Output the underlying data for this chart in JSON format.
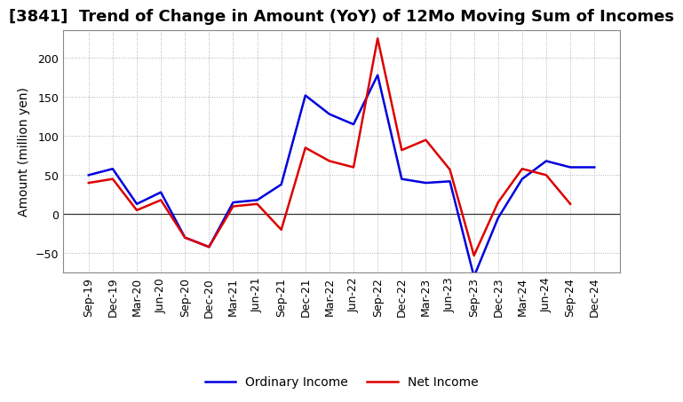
{
  "title": "[3841]  Trend of Change in Amount (YoY) of 12Mo Moving Sum of Incomes",
  "ylabel": "Amount (million yen)",
  "x_labels": [
    "Sep-19",
    "Dec-19",
    "Mar-20",
    "Jun-20",
    "Sep-20",
    "Dec-20",
    "Mar-21",
    "Jun-21",
    "Sep-21",
    "Dec-21",
    "Mar-22",
    "Jun-22",
    "Sep-22",
    "Dec-22",
    "Mar-23",
    "Jun-23",
    "Sep-23",
    "Dec-23",
    "Mar-24",
    "Jun-24",
    "Sep-24",
    "Dec-24"
  ],
  "ordinary_income": [
    50,
    58,
    13,
    28,
    -30,
    -42,
    15,
    18,
    38,
    152,
    128,
    115,
    178,
    45,
    40,
    42,
    -80,
    -5,
    45,
    68,
    60,
    60
  ],
  "net_income": [
    40,
    45,
    5,
    18,
    -30,
    -42,
    10,
    13,
    -20,
    85,
    68,
    60,
    225,
    82,
    95,
    57,
    -53,
    15,
    58,
    50,
    13,
    null
  ],
  "ordinary_color": "#0000dd",
  "net_color": "#dd0000",
  "background_color": "#ffffff",
  "grid_color": "#999999",
  "ylim": [
    -75,
    235
  ],
  "yticks": [
    -50,
    0,
    50,
    100,
    150,
    200
  ],
  "legend_labels": [
    "Ordinary Income",
    "Net Income"
  ],
  "line_width": 1.8,
  "title_fontsize": 13,
  "axis_fontsize": 9,
  "ylabel_fontsize": 10,
  "legend_fontsize": 10
}
